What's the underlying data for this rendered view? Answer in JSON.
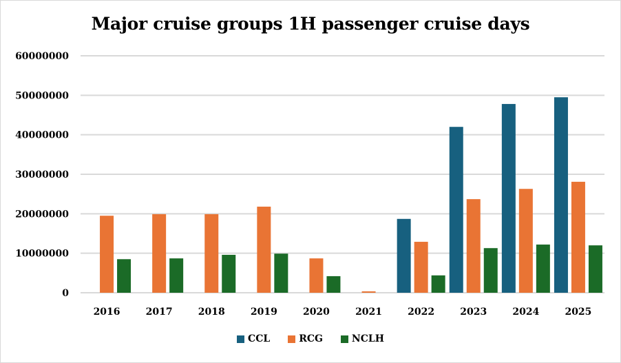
{
  "chart_data": {
    "type": "bar",
    "title": "Major cruise groups 1H passenger cruise days",
    "xlabel": "",
    "ylabel": "",
    "ylim": [
      0,
      60000000
    ],
    "yticks": [
      0,
      10000000,
      20000000,
      30000000,
      40000000,
      50000000,
      60000000
    ],
    "ytick_labels": [
      "0",
      "10000000",
      "20000000",
      "30000000",
      "40000000",
      "50000000",
      "60000000"
    ],
    "grid": true,
    "legend_position": "bottom",
    "categories": [
      "2016",
      "2017",
      "2018",
      "2019",
      "2020",
      "2021",
      "2022",
      "2023",
      "2024",
      "2025"
    ],
    "series": [
      {
        "name": "CCL",
        "color": "#17607f",
        "values": [
          null,
          null,
          null,
          null,
          null,
          null,
          18700000,
          42000000,
          47800000,
          49500000
        ]
      },
      {
        "name": "RCG",
        "color": "#e97434",
        "values": [
          19500000,
          19900000,
          19900000,
          21800000,
          8700000,
          350000,
          12900000,
          23700000,
          26300000,
          28100000
        ]
      },
      {
        "name": "NCLH",
        "color": "#1b6b27",
        "values": [
          8500000,
          8700000,
          9600000,
          9900000,
          4200000,
          null,
          4400000,
          11300000,
          12200000,
          12000000
        ]
      }
    ]
  }
}
